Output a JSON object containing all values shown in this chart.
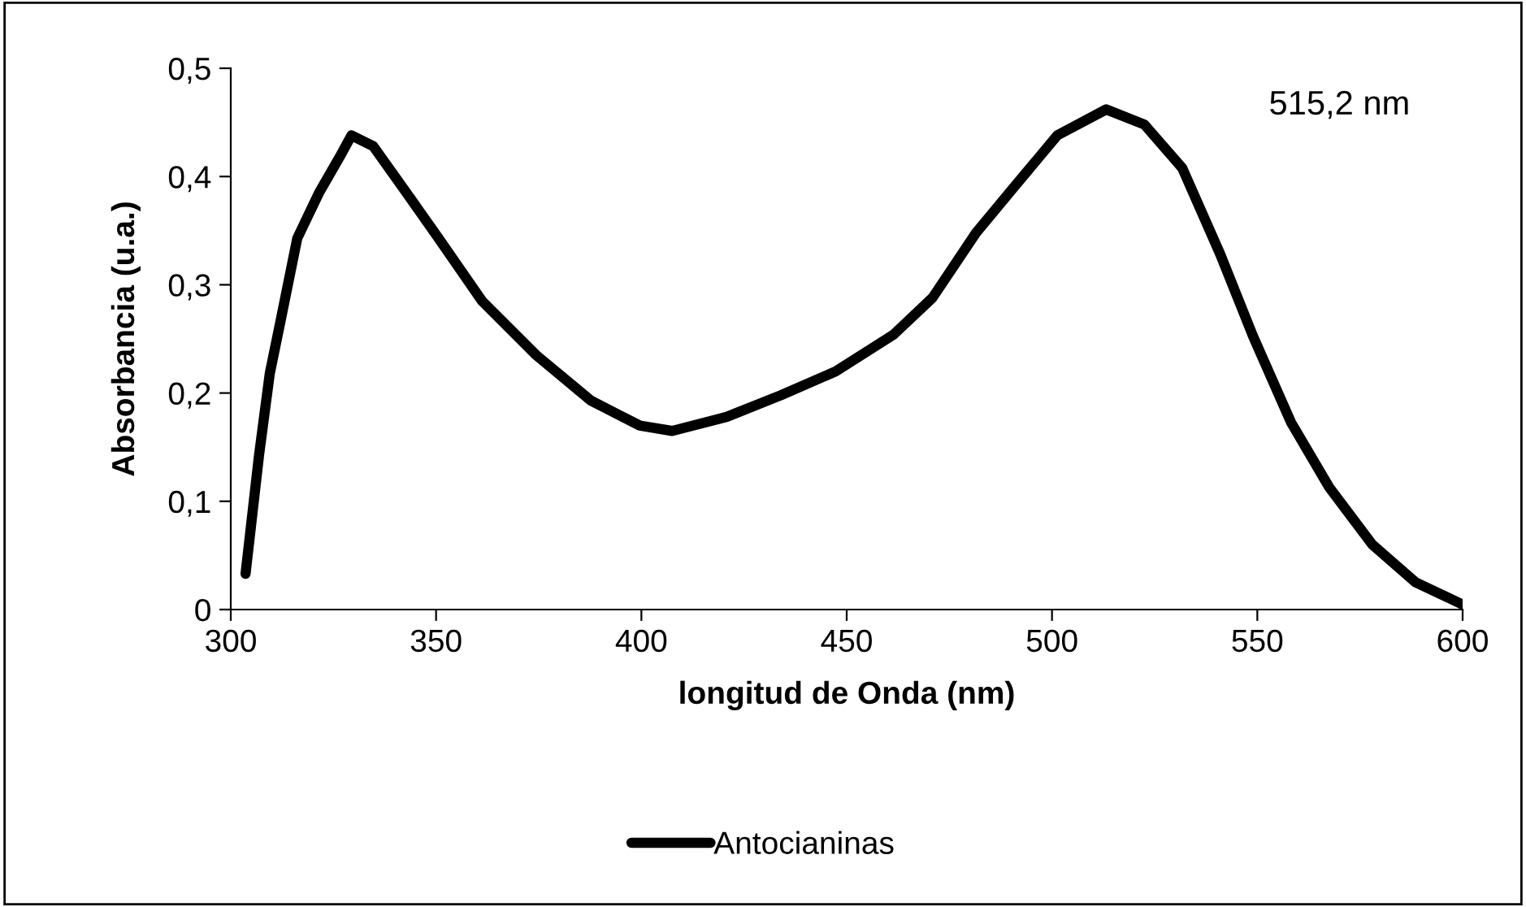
{
  "chart_data": {
    "type": "line",
    "xlabel": "longitud de Onda (nm)",
    "ylabel": "Absorbancia (u.a.)",
    "annotations": [
      "515,2 nm"
    ],
    "xlim": [
      300,
      600
    ],
    "xticks": [
      300,
      350,
      400,
      450,
      500,
      550,
      600
    ],
    "ylim": [
      0,
      0.5
    ],
    "yticks": [
      {
        "value": 0,
        "label": "0"
      },
      {
        "value": 0.1,
        "label": "0,1"
      },
      {
        "value": 0.2,
        "label": "0,2"
      },
      {
        "value": 0.3,
        "label": "0,3"
      },
      {
        "value": 0.4,
        "label": "0,4"
      },
      {
        "value": 0.5,
        "label": "0,5"
      }
    ],
    "grid": false,
    "legend": "bottom",
    "marker": "none",
    "line_style": "solid",
    "series": [
      {
        "name": "Antocianinas",
        "color": "#000000",
        "x": [
          303.6,
          306.9,
          309.5,
          312.2,
          316.2,
          321.5,
          326.8,
          329.4,
          334.7,
          341.3,
          350.6,
          361.2,
          374.4,
          387.7,
          399.6,
          407.5,
          420.8,
          434.0,
          447.3,
          461.4,
          470.9,
          481.5,
          490.7,
          501.3,
          513.2,
          522.5,
          531.7,
          541.0,
          548.9,
          558.2,
          567.5,
          578.0,
          588.6,
          599.8
        ],
        "values": [
          0.033,
          0.143,
          0.218,
          0.268,
          0.343,
          0.385,
          0.42,
          0.438,
          0.428,
          0.393,
          0.343,
          0.285,
          0.235,
          0.193,
          0.17,
          0.165,
          0.178,
          0.198,
          0.22,
          0.254,
          0.288,
          0.348,
          0.39,
          0.438,
          0.462,
          0.448,
          0.408,
          0.328,
          0.253,
          0.173,
          0.113,
          0.06,
          0.025,
          0.005
        ]
      }
    ]
  }
}
